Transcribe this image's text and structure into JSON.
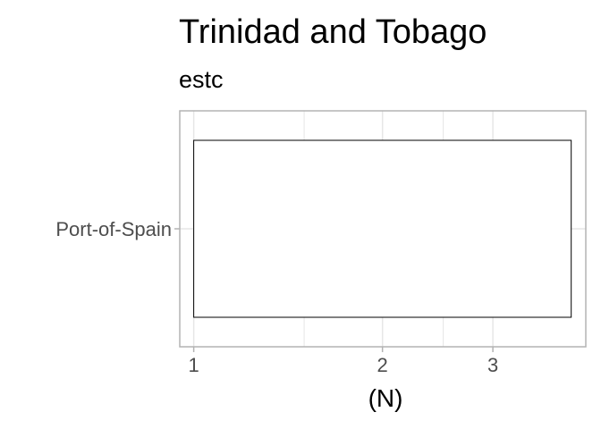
{
  "chart_data": {
    "type": "bar",
    "orientation": "horizontal",
    "title": "Trinidad and Tobago",
    "subtitle": "estc",
    "categories": [
      "Port-of-Spain"
    ],
    "values": [
      4
    ],
    "xlabel": "(N)",
    "ylabel": "",
    "x_scale": "log10",
    "xlim": [
      0.95,
      4.22
    ],
    "x_major_ticks": [
      1,
      2,
      3
    ],
    "x_tick_labels": [
      "1",
      "2",
      "3"
    ],
    "x_minor_ticks": [
      1.5,
      2.5
    ],
    "grid": true,
    "legend": "none",
    "colors": {
      "bar_fill": "#ffffff",
      "bar_outline": "#000000",
      "grid": "#e6e6e6",
      "panel_border": "#b3b3b3",
      "tick_label": "#4d4d4d"
    }
  }
}
